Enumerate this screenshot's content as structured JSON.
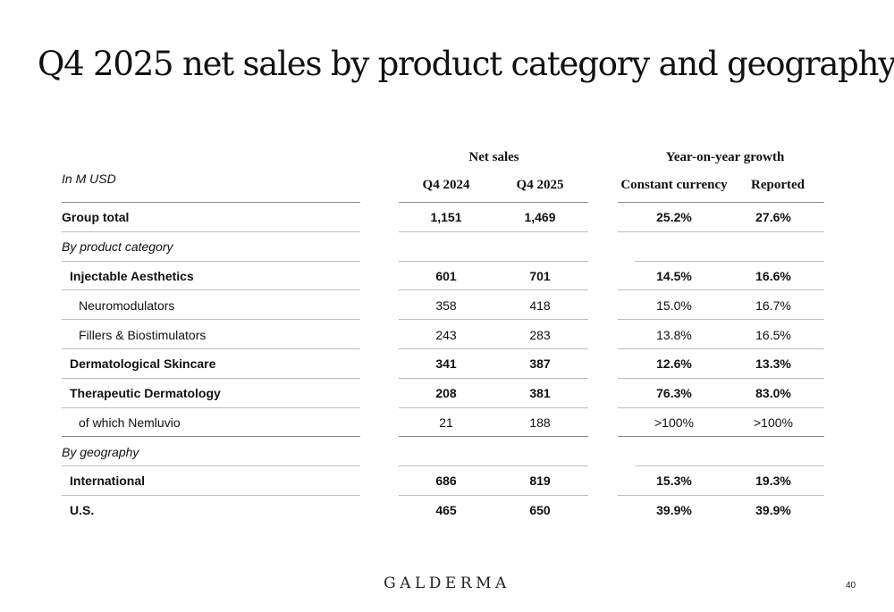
{
  "title": "Q4 2025 net sales by product category and geography",
  "table": {
    "unit_label": "In M USD",
    "group_headers": {
      "net_sales": "Net sales",
      "growth": "Year-on-year growth"
    },
    "columns": [
      "Q4 2024",
      "Q4 2025",
      "Constant currency",
      "Reported"
    ],
    "rows": [
      {
        "label": "Group total",
        "values": [
          "1,151",
          "1,469",
          "25.2%",
          "27.6%"
        ]
      },
      {
        "label": "By product category",
        "values": [
          "",
          "",
          "",
          ""
        ]
      },
      {
        "label": "Injectable Aesthetics",
        "values": [
          "601",
          "701",
          "14.5%",
          "16.6%"
        ]
      },
      {
        "label": "Neuromodulators",
        "values": [
          "358",
          "418",
          "15.0%",
          "16.7%"
        ]
      },
      {
        "label": "Fillers & Biostimulators",
        "values": [
          "243",
          "283",
          "13.8%",
          "16.5%"
        ]
      },
      {
        "label": "Dermatological Skincare",
        "values": [
          "341",
          "387",
          "12.6%",
          "13.3%"
        ]
      },
      {
        "label": "Therapeutic Dermatology",
        "values": [
          "208",
          "381",
          "76.3%",
          "83.0%"
        ]
      },
      {
        "label": "of which Nemluvio",
        "values": [
          "21",
          "188",
          ">100%",
          ">100%"
        ]
      },
      {
        "label": "By geography",
        "values": [
          "",
          "",
          "",
          ""
        ]
      },
      {
        "label": "International",
        "values": [
          "686",
          "819",
          "15.3%",
          "19.3%"
        ]
      },
      {
        "label": "U.S.",
        "values": [
          "465",
          "650",
          "39.9%",
          "39.9%"
        ]
      }
    ]
  },
  "footer": {
    "logo": "GALDERMA",
    "page_number": "40"
  }
}
